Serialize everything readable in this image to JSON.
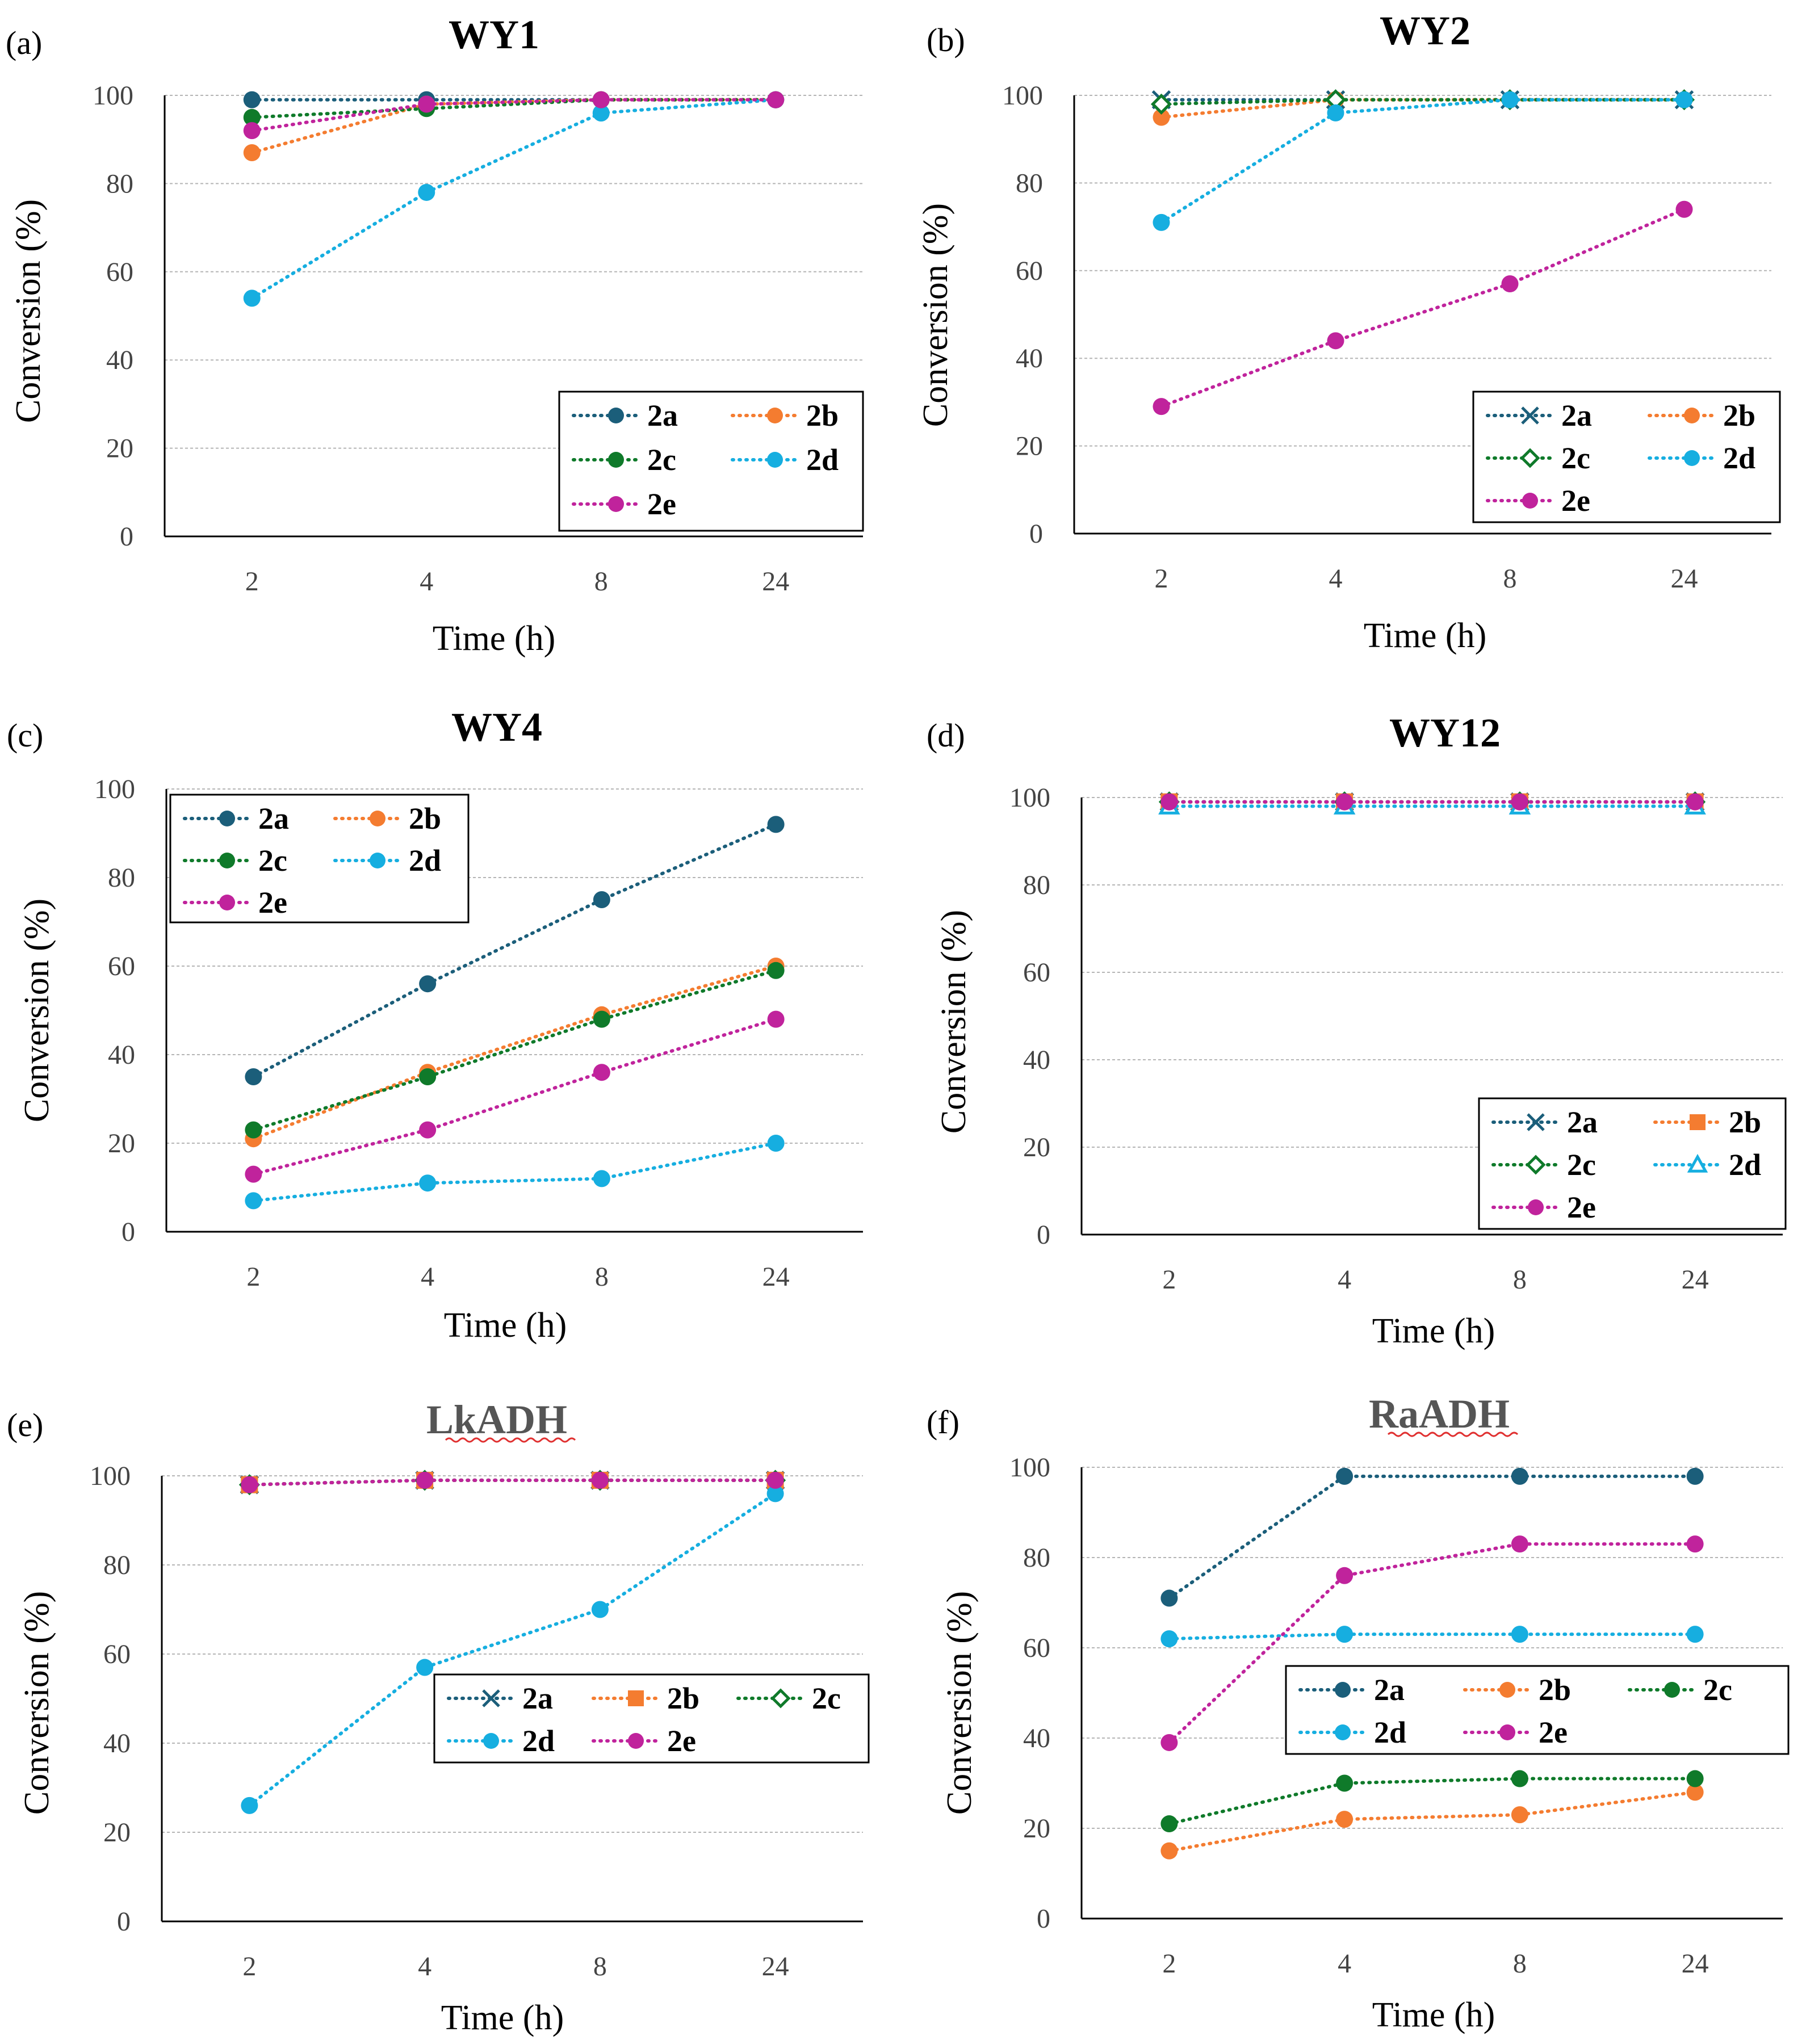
{
  "figure": {
    "marker_styles": {
      "2a": "circle",
      "2b": "circle",
      "2c": "circle",
      "2d": "circle",
      "2e": "circle"
    }
  },
  "chart_data": [
    {
      "panel": "(a)",
      "type": "line",
      "title": "WY1",
      "xlabel": "Time (h)",
      "ylabel": "Conversion  (%)",
      "categories": [
        "2",
        "4",
        "8",
        "24"
      ],
      "ylim": [
        0,
        100
      ],
      "yticks": [
        "0",
        "20",
        "40",
        "60",
        "80",
        "100"
      ],
      "legend": "bottom-right",
      "series": [
        {
          "name": "2a",
          "color": "#1b5e7a",
          "marker": "circle",
          "values": [
            99,
            99,
            99,
            99
          ]
        },
        {
          "name": "2b",
          "color": "#f47c30",
          "marker": "circle",
          "values": [
            87,
            98,
            99,
            99
          ]
        },
        {
          "name": "2c",
          "color": "#0f7a2a",
          "marker": "circle",
          "values": [
            95,
            97,
            99,
            99
          ]
        },
        {
          "name": "2d",
          "color": "#16aee0",
          "marker": "circle",
          "values": [
            54,
            78,
            96,
            99
          ]
        },
        {
          "name": "2e",
          "color": "#c0239c",
          "marker": "circle",
          "values": [
            92,
            98,
            99,
            99
          ]
        }
      ]
    },
    {
      "panel": "(b)",
      "type": "line",
      "title": "WY2",
      "xlabel": "Time (h)",
      "ylabel": "Conversion (%)",
      "categories": [
        "2",
        "4",
        "8",
        "24"
      ],
      "ylim": [
        0,
        100
      ],
      "yticks": [
        "0",
        "20",
        "40",
        "60",
        "80",
        "100"
      ],
      "legend": "bottom-right",
      "series": [
        {
          "name": "2a",
          "color": "#1b5e7a",
          "marker": "x",
          "values": [
            99,
            99,
            99,
            99
          ]
        },
        {
          "name": "2b",
          "color": "#f47c30",
          "marker": "circle",
          "values": [
            95,
            99,
            99,
            99
          ]
        },
        {
          "name": "2c",
          "color": "#0f7a2a",
          "marker": "diamond-open",
          "values": [
            98,
            99,
            99,
            99
          ]
        },
        {
          "name": "2d",
          "color": "#16aee0",
          "marker": "circle",
          "values": [
            71,
            96,
            99,
            99
          ]
        },
        {
          "name": "2e",
          "color": "#c0239c",
          "marker": "circle",
          "values": [
            29,
            44,
            57,
            74
          ]
        }
      ]
    },
    {
      "panel": "(c)",
      "type": "line",
      "title": "WY4",
      "xlabel": "Time (h)",
      "ylabel": "Conversion (%)",
      "categories": [
        "2",
        "4",
        "8",
        "24"
      ],
      "ylim": [
        0,
        100
      ],
      "yticks": [
        "0",
        "20",
        "40",
        "60",
        "80",
        "100"
      ],
      "legend": "top-left",
      "series": [
        {
          "name": "2a",
          "color": "#1b5e7a",
          "marker": "circle",
          "values": [
            35,
            56,
            75,
            92
          ]
        },
        {
          "name": "2b",
          "color": "#f47c30",
          "marker": "circle",
          "values": [
            21,
            36,
            49,
            60
          ]
        },
        {
          "name": "2c",
          "color": "#0f7a2a",
          "marker": "circle",
          "values": [
            23,
            35,
            48,
            59
          ]
        },
        {
          "name": "2d",
          "color": "#16aee0",
          "marker": "circle",
          "values": [
            7,
            11,
            12,
            20
          ]
        },
        {
          "name": "2e",
          "color": "#c0239c",
          "marker": "circle",
          "values": [
            13,
            23,
            36,
            48
          ]
        }
      ]
    },
    {
      "panel": "(d)",
      "type": "line",
      "title": "WY12",
      "xlabel": "Time (h)",
      "ylabel": "Conversion (%)",
      "categories": [
        "2",
        "4",
        "8",
        "24"
      ],
      "ylim": [
        0,
        100
      ],
      "yticks": [
        "0",
        "20",
        "40",
        "60",
        "80",
        "100"
      ],
      "legend": "bottom-right",
      "series": [
        {
          "name": "2a",
          "color": "#1b5e7a",
          "marker": "x",
          "values": [
            99,
            99,
            99,
            99
          ]
        },
        {
          "name": "2b",
          "color": "#f47c30",
          "marker": "square",
          "values": [
            99,
            99,
            99,
            99
          ]
        },
        {
          "name": "2c",
          "color": "#0f7a2a",
          "marker": "diamond-open",
          "values": [
            99,
            99,
            99,
            99
          ]
        },
        {
          "name": "2d",
          "color": "#16aee0",
          "marker": "triangle-open",
          "values": [
            98,
            98,
            98,
            98
          ]
        },
        {
          "name": "2e",
          "color": "#c0239c",
          "marker": "circle",
          "values": [
            99,
            99,
            99,
            99
          ]
        }
      ]
    },
    {
      "panel": "(e)",
      "type": "line",
      "title": "LkADH",
      "xlabel": "Time (h)",
      "ylabel": "Conversion (%)",
      "categories": [
        "2",
        "4",
        "8",
        "24"
      ],
      "ylim": [
        0,
        100
      ],
      "yticks": [
        "0",
        "20",
        "40",
        "60",
        "80",
        "100"
      ],
      "legend": "center-right",
      "series": [
        {
          "name": "2a",
          "color": "#1b5e7a",
          "marker": "x",
          "values": [
            98,
            99,
            99,
            99
          ]
        },
        {
          "name": "2b",
          "color": "#f47c30",
          "marker": "square",
          "values": [
            98,
            99,
            99,
            99
          ]
        },
        {
          "name": "2c",
          "color": "#0f7a2a",
          "marker": "diamond-open",
          "values": [
            98,
            99,
            99,
            99
          ]
        },
        {
          "name": "2d",
          "color": "#16aee0",
          "marker": "circle",
          "values": [
            26,
            57,
            70,
            96
          ]
        },
        {
          "name": "2e",
          "color": "#c0239c",
          "marker": "circle",
          "values": [
            98,
            99,
            99,
            99
          ]
        }
      ]
    },
    {
      "panel": "(f)",
      "type": "line",
      "title": "RaADH",
      "xlabel": "Time (h)",
      "ylabel": "Conversion (%)",
      "categories": [
        "2",
        "4",
        "8",
        "24"
      ],
      "ylim": [
        0,
        100
      ],
      "yticks": [
        "0",
        "20",
        "40",
        "60",
        "80",
        "100"
      ],
      "legend": "center-right",
      "series": [
        {
          "name": "2a",
          "color": "#1b5e7a",
          "marker": "circle",
          "values": [
            71,
            98,
            98,
            98
          ]
        },
        {
          "name": "2b",
          "color": "#f47c30",
          "marker": "circle",
          "values": [
            15,
            22,
            23,
            28
          ]
        },
        {
          "name": "2c",
          "color": "#0f7a2a",
          "marker": "circle",
          "values": [
            21,
            30,
            31,
            31
          ]
        },
        {
          "name": "2d",
          "color": "#16aee0",
          "marker": "circle",
          "values": [
            62,
            63,
            63,
            63
          ]
        },
        {
          "name": "2e",
          "color": "#c0239c",
          "marker": "circle",
          "values": [
            39,
            76,
            83,
            83
          ]
        }
      ]
    }
  ]
}
